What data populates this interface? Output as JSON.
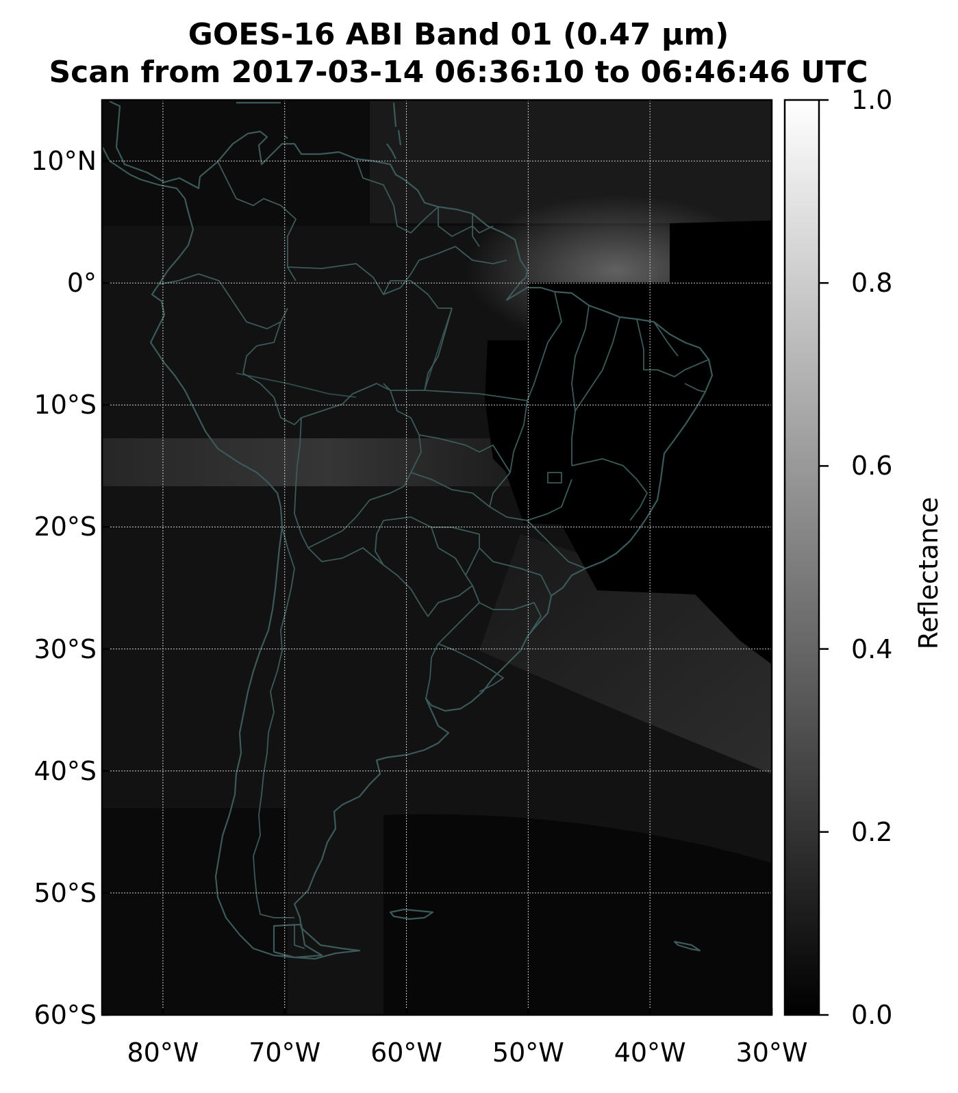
{
  "title": {
    "line1": "GOES-16 ABI Band 01 (0.47 µm)",
    "line2": "Scan from 2017-03-14 06:36:10 to 06:46:46 UTC"
  },
  "latitudes": [
    {
      "value": 10,
      "label": "10°N"
    },
    {
      "value": 0,
      "label": "0°"
    },
    {
      "value": -10,
      "label": "10°S"
    },
    {
      "value": -20,
      "label": "20°S"
    },
    {
      "value": -30,
      "label": "30°S"
    },
    {
      "value": -40,
      "label": "40°S"
    },
    {
      "value": -50,
      "label": "50°S"
    },
    {
      "value": -60,
      "label": "60°S"
    }
  ],
  "longitudes": [
    {
      "value": -80,
      "label": "80°W"
    },
    {
      "value": -70,
      "label": "70°W"
    },
    {
      "value": -60,
      "label": "60°W"
    },
    {
      "value": -50,
      "label": "50°W"
    },
    {
      "value": -40,
      "label": "40°W"
    },
    {
      "value": -30,
      "label": "30°W"
    }
  ],
  "extent": {
    "lon_min": -85,
    "lon_max": -30,
    "lat_min": -60,
    "lat_max": 15
  },
  "colorbar": {
    "label": "Reflectance",
    "min": 0.0,
    "max": 1.0,
    "ticks": [
      {
        "value": 1.0,
        "label": "1.0"
      },
      {
        "value": 0.8,
        "label": "0.8"
      },
      {
        "value": 0.6,
        "label": "0.6"
      },
      {
        "value": 0.4,
        "label": "0.4"
      },
      {
        "value": 0.2,
        "label": "0.2"
      },
      {
        "value": 0.0,
        "label": "0.0"
      }
    ]
  },
  "colors": {
    "background_space": "#000000",
    "surface_dark": "#121212",
    "coastline": "#3d5a5a",
    "gridline": "#d0d0d0"
  }
}
